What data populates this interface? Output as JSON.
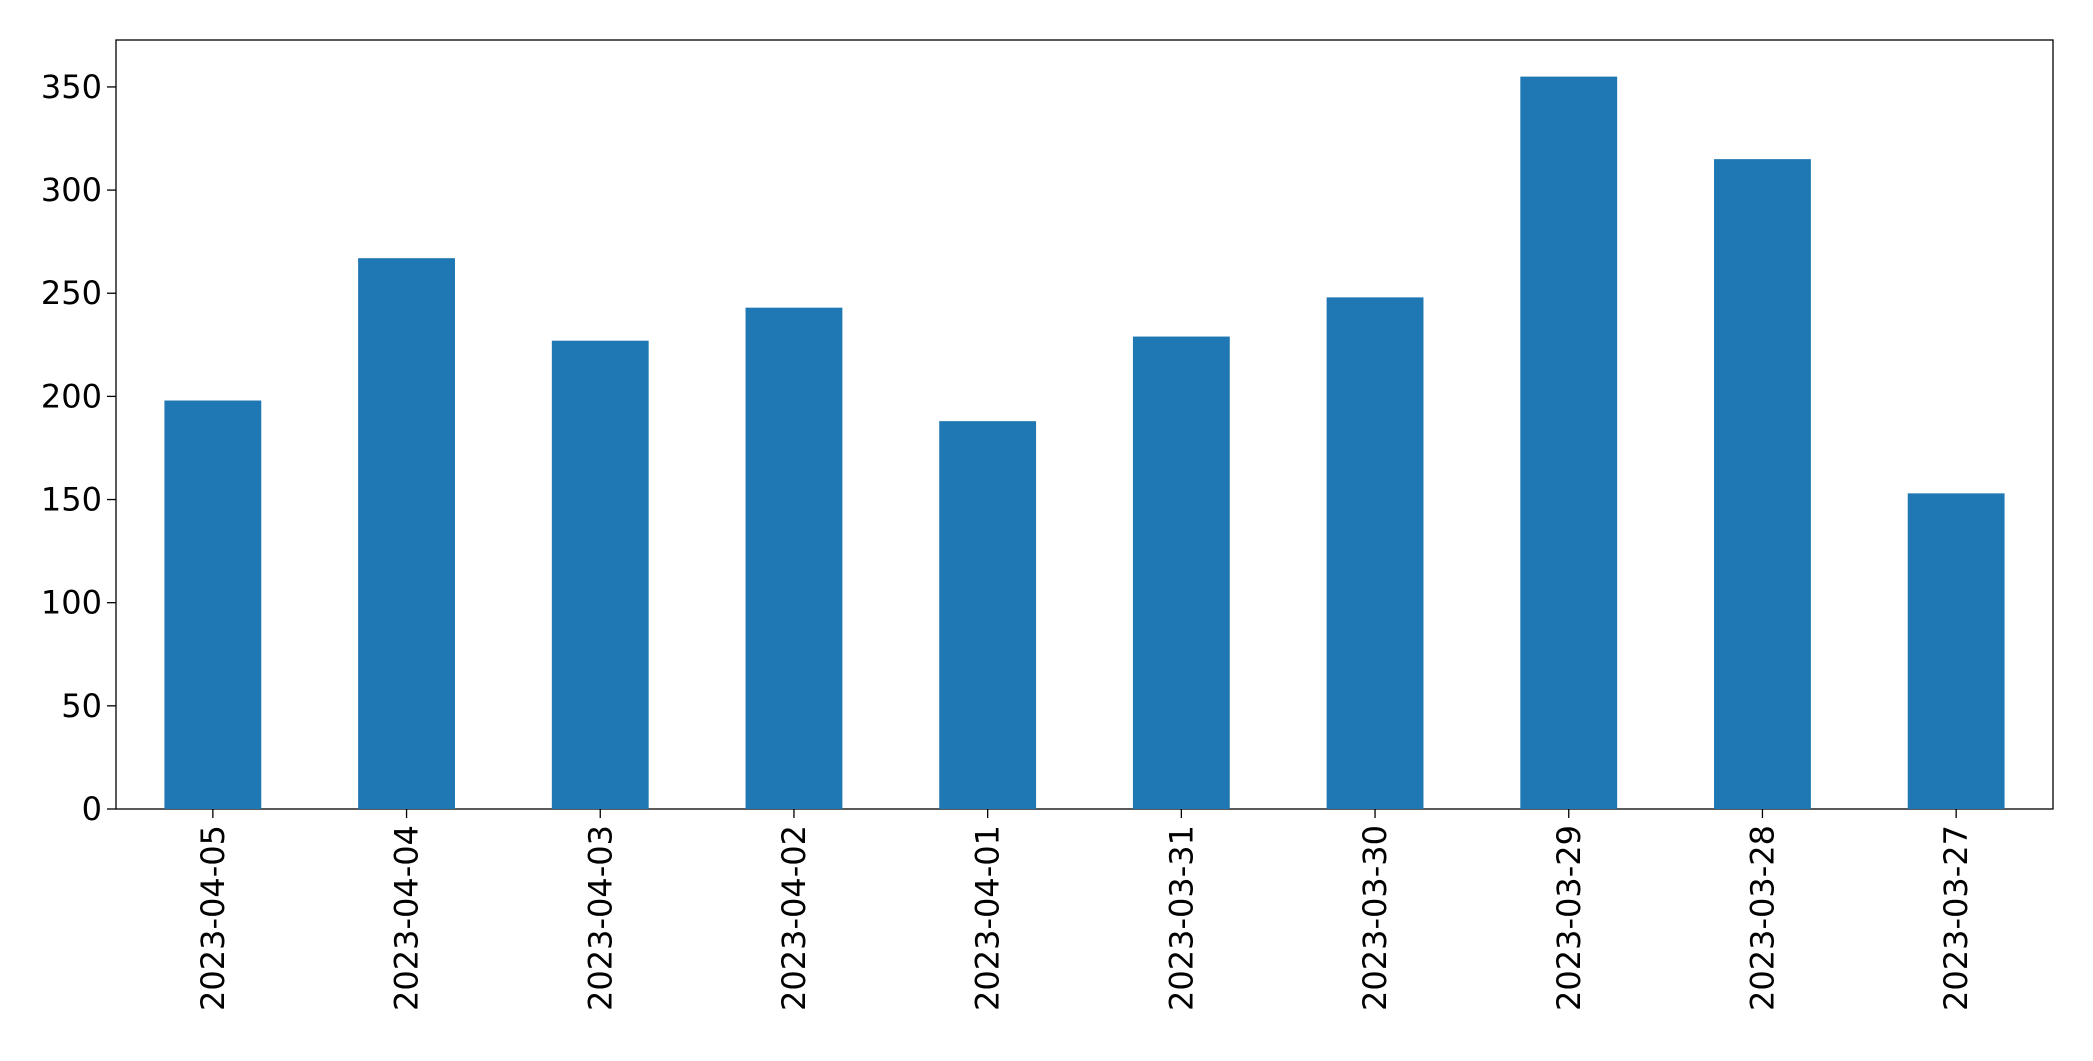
{
  "chart_data": {
    "type": "bar",
    "categories": [
      "2023-04-05",
      "2023-04-04",
      "2023-04-03",
      "2023-04-02",
      "2023-04-01",
      "2023-03-31",
      "2023-03-30",
      "2023-03-29",
      "2023-03-28",
      "2023-03-27"
    ],
    "values": [
      198,
      267,
      227,
      243,
      188,
      229,
      248,
      355,
      315,
      153
    ],
    "color": "#1f77b4",
    "ylim": [
      0,
      372.75
    ],
    "yticks": [
      0,
      50,
      100,
      150,
      200,
      250,
      300,
      350
    ],
    "grid": false
  }
}
